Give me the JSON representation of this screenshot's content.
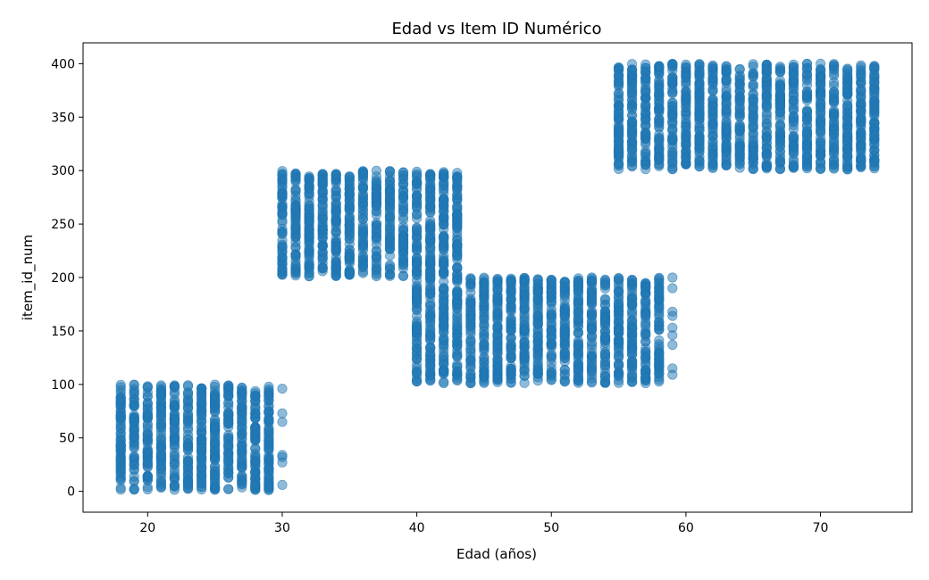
{
  "chart_data": {
    "type": "scatter",
    "title": "Edad vs Item ID Numérico",
    "xlabel": "Edad (años)",
    "ylabel": "item_id_num",
    "xlim": [
      15.2,
      76.8
    ],
    "ylim": [
      -19.5,
      419.5
    ],
    "xticks": [
      20,
      30,
      40,
      50,
      60,
      70
    ],
    "yticks": [
      0,
      50,
      100,
      150,
      200,
      250,
      300,
      350,
      400
    ],
    "grid": false,
    "legend": "none",
    "marker_color": "#1f77b4",
    "marker_alpha": 0.5,
    "clusters": [
      {
        "age_min": 18,
        "age_max": 29,
        "item_min": 1,
        "item_max": 100
      },
      {
        "age_min": 30,
        "age_max": 43,
        "item_min": 201,
        "item_max": 300
      },
      {
        "age_min": 40,
        "age_max": 58,
        "item_min": 101,
        "item_max": 200
      },
      {
        "age_min": 55,
        "age_max": 74,
        "item_min": 301,
        "item_max": 400
      }
    ],
    "sparse_points": [
      {
        "x": 30,
        "y": 96
      },
      {
        "x": 30,
        "y": 73
      },
      {
        "x": 30,
        "y": 65
      },
      {
        "x": 30,
        "y": 34
      },
      {
        "x": 30,
        "y": 32
      },
      {
        "x": 30,
        "y": 27
      },
      {
        "x": 30,
        "y": 6
      },
      {
        "x": 59,
        "y": 200
      },
      {
        "x": 59,
        "y": 190
      },
      {
        "x": 59,
        "y": 168
      },
      {
        "x": 59,
        "y": 164
      },
      {
        "x": 59,
        "y": 153
      },
      {
        "x": 59,
        "y": 146
      },
      {
        "x": 59,
        "y": 137
      },
      {
        "x": 59,
        "y": 115
      },
      {
        "x": 59,
        "y": 109
      }
    ]
  }
}
